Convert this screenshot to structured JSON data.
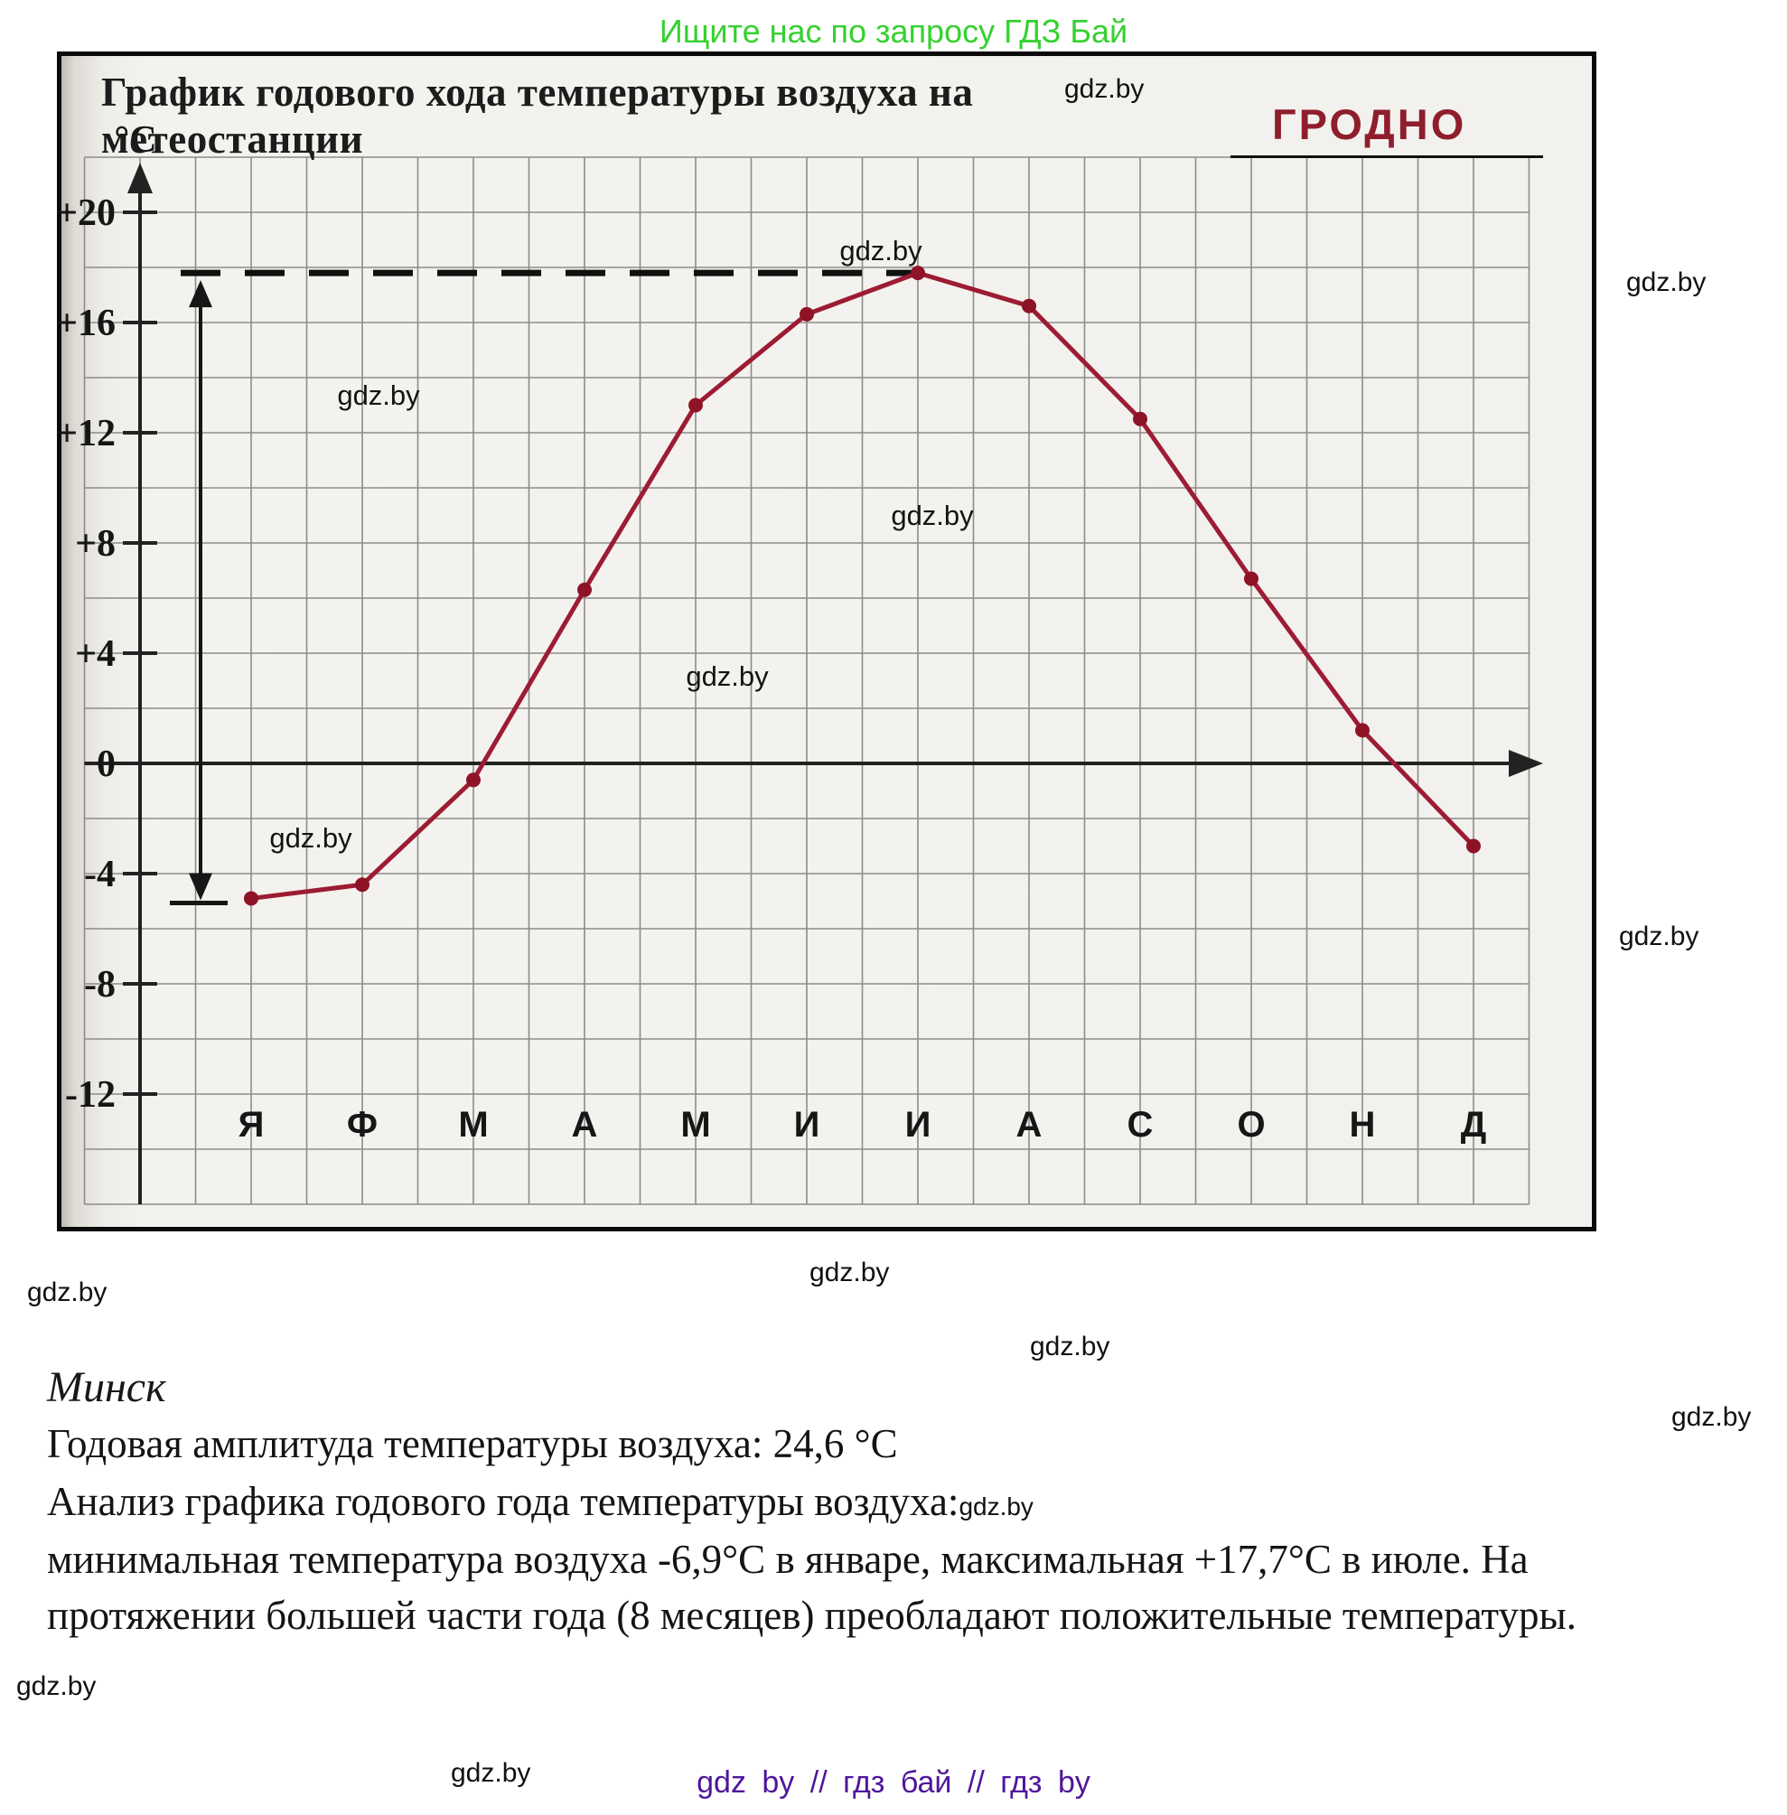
{
  "header": {
    "promo": "Ищите нас по запросу ГДЗ Бай",
    "promo_color": "#35d12f"
  },
  "watermark": {
    "text": "gdz.by"
  },
  "chart": {
    "title": "График годового хода температуры воздуха на метеостанции",
    "station": "ГРОДНО",
    "station_color": "#8f1e2d"
  },
  "chart_data": {
    "type": "line",
    "title": "График годового хода температуры воздуха на метеостанции Гродно",
    "categories": [
      "Я",
      "Ф",
      "М",
      "А",
      "М",
      "И",
      "И",
      "А",
      "С",
      "О",
      "Н",
      "Д"
    ],
    "values": [
      -4.9,
      -4.4,
      -0.6,
      6.3,
      13.0,
      16.3,
      17.8,
      16.6,
      12.5,
      6.7,
      1.2,
      -3.0
    ],
    "ylabel": "°C",
    "ylim": [
      -16,
      22
    ],
    "grid": true,
    "y_ticks": [
      {
        "label": "+20",
        "value": 20
      },
      {
        "label": "+16",
        "value": 16
      },
      {
        "label": "+12",
        "value": 12
      },
      {
        "label": "+8",
        "value": 8
      },
      {
        "label": "+4",
        "value": 4
      },
      {
        "label": "0",
        "value": 0
      },
      {
        "label": "-4",
        "value": -4
      },
      {
        "label": "-8",
        "value": -8
      },
      {
        "label": "-12",
        "value": -12
      }
    ],
    "max_value_line": 17.8,
    "amplitude_arrow": {
      "from": -4.9,
      "to": 17.8
    },
    "line_color": "#9c1c33",
    "point_color": "#8e1327"
  },
  "notes": {
    "city": "Минск",
    "line1": "Годовая амплитуда температуры воздуха: 24,6 °С",
    "line2": "Анализ графика годового года температуры воздуха:",
    "line3": "минимальная температура воздуха -6,9°С в январе, максимальная +17,7°С в июле. На",
    "line4": "протяжении большей части года (8 месяцев) преобладают положительные температуры."
  },
  "footer": {
    "text": "gdz by // гдз бай // гдз by",
    "color": "#4f169b"
  }
}
